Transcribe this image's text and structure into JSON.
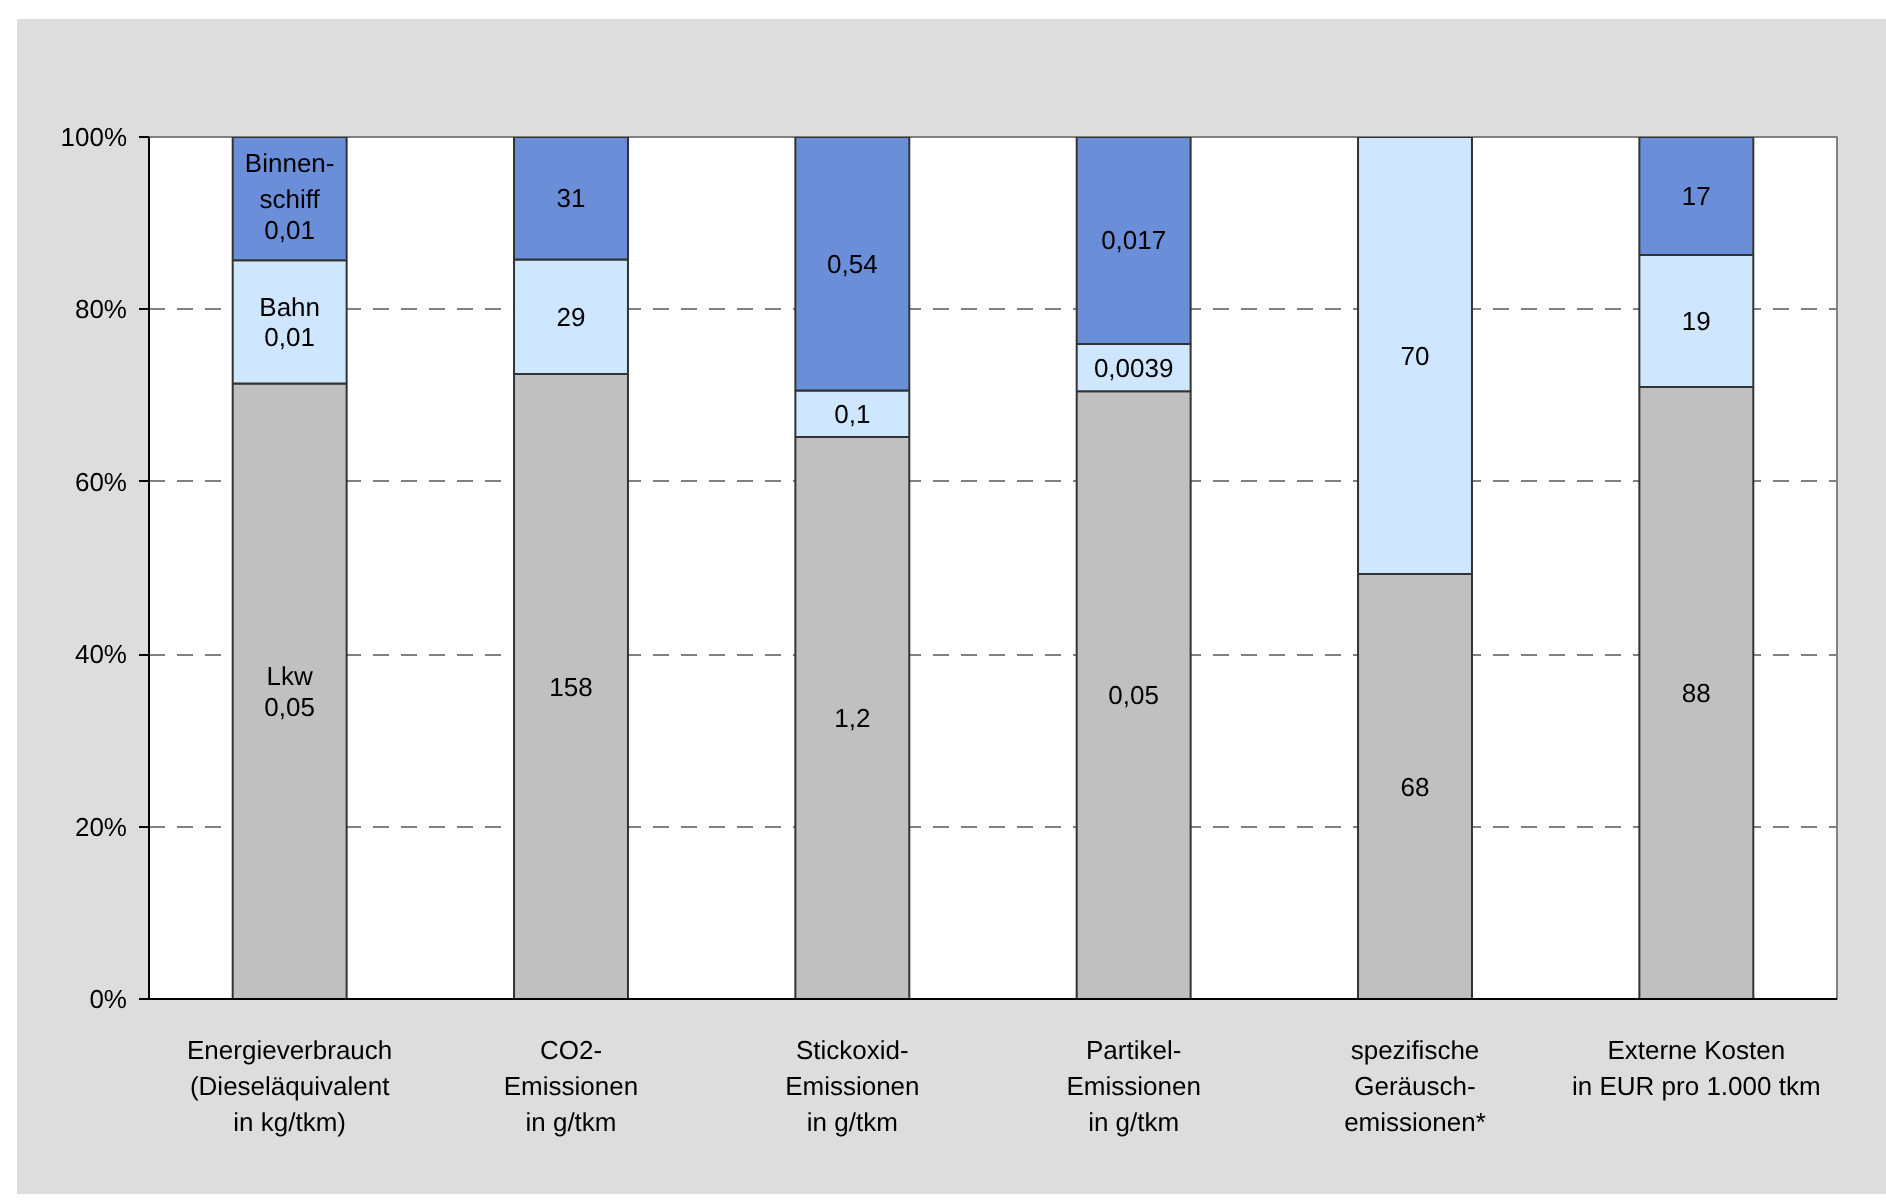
{
  "chart_data": {
    "type": "bar",
    "stacked": true,
    "categories": [
      "Energieverbrauch\n(Dieseläquivalent\nin kg/tkm)",
      "CO2-\nEmissionen\nin g/tkm",
      "Stickoxid-\nEmissionen\nin g/tkm",
      "Partikel-\nEmissionen\nin g/tkm",
      "spezifische\nGeräusch-\nemissionen*",
      "Externe Kosten\nin EUR pro 1.000 tkm"
    ],
    "series": [
      {
        "name": "Lkw",
        "color": "#c0c0c0",
        "values": [
          71.4,
          72.5,
          65.2,
          70.5,
          49.3,
          71.0
        ]
      },
      {
        "name": "Bahn",
        "color": "#cfe6ff",
        "values": [
          14.3,
          13.3,
          5.4,
          5.5,
          50.7,
          15.3
        ]
      },
      {
        "name": "Binnen-\nschiff",
        "color": "#6a8fd8",
        "values": [
          14.3,
          14.2,
          29.4,
          24.0,
          null,
          13.7
        ]
      }
    ],
    "ylim": [
      0,
      100
    ],
    "yticks": [
      {
        "value": 0,
        "label": "0%"
      },
      {
        "value": 20,
        "label": "20%"
      },
      {
        "value": 40,
        "label": "40%"
      },
      {
        "value": 60,
        "label": "60%"
      },
      {
        "value": 80,
        "label": "80%"
      },
      {
        "value": 100,
        "label": "100%"
      }
    ],
    "grid": "y",
    "annotations": [
      "0,01",
      "0,01",
      "0,05",
      "31",
      "29",
      "158",
      "0,54",
      "0,1",
      "1,2",
      "0,017",
      "0,0039",
      "0,05",
      "70",
      "68",
      "17",
      "19",
      "88"
    ]
  }
}
